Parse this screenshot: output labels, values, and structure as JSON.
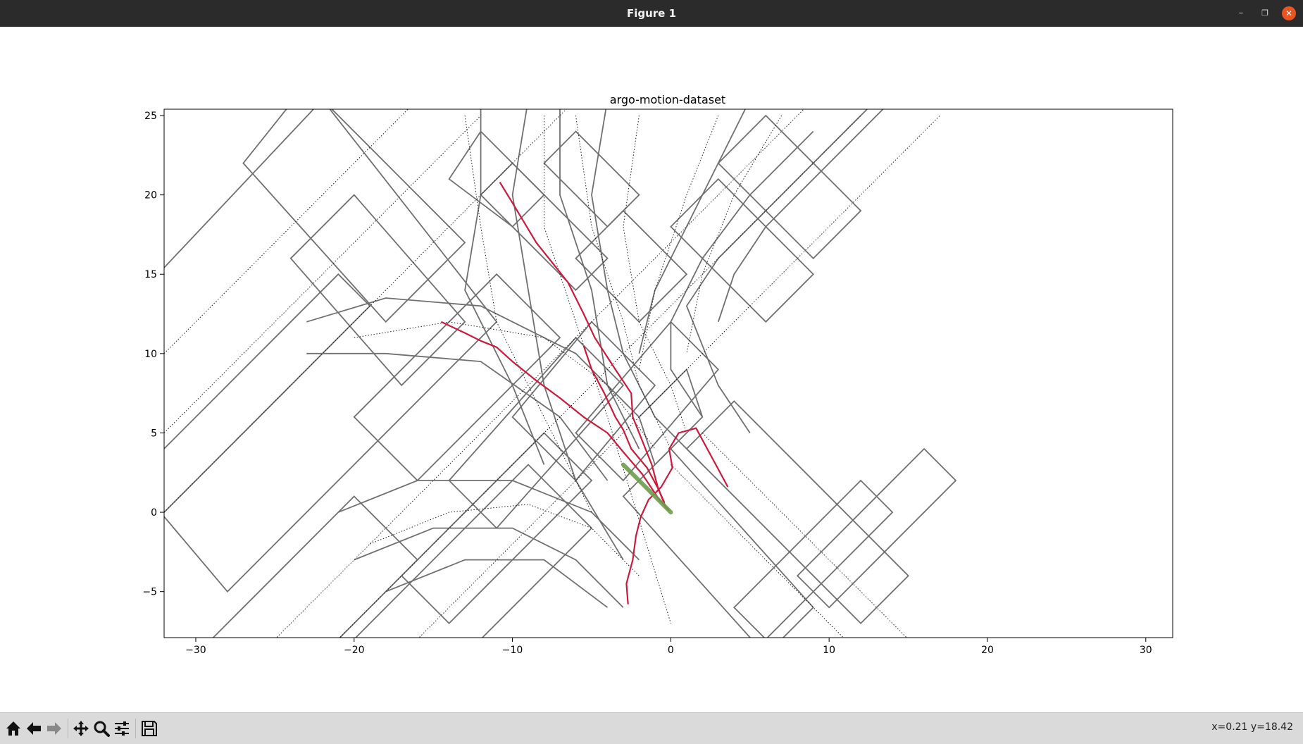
{
  "window": {
    "title": "Figure 1",
    "minimize_glyph": "–",
    "maximize_glyph": "❐",
    "close_glyph": "✕"
  },
  "toolbar": {
    "buttons": [
      {
        "name": "home-icon",
        "label": "Home"
      },
      {
        "name": "back-icon",
        "label": "Back"
      },
      {
        "name": "forward-icon",
        "label": "Forward"
      },
      {
        "name": "pan-icon",
        "label": "Pan"
      },
      {
        "name": "zoom-icon",
        "label": "Zoom"
      },
      {
        "name": "configure-subplots-icon",
        "label": "Configure subplots"
      },
      {
        "name": "save-icon",
        "label": "Save"
      }
    ],
    "coordinates": "x=0.21 y=18.42"
  },
  "chart_data": {
    "type": "line",
    "title": "argo-motion-dataset",
    "xlabel": "",
    "ylabel": "",
    "xlim": [
      -32,
      31.7
    ],
    "ylim": [
      -7.9,
      25.4
    ],
    "xticks": [
      -30,
      -20,
      -10,
      0,
      10,
      20,
      30
    ],
    "yticks": [
      -5,
      0,
      5,
      10,
      15,
      20,
      25
    ],
    "grid": false,
    "colors": {
      "lanes": "#707070",
      "centerlines": "#202020",
      "trajectories": "#cc1a3c",
      "ego": "#6b9c4d"
    },
    "lane_polygons": [
      [
        [
          -28,
          -5
        ],
        [
          -14,
          9
        ],
        [
          -11,
          12
        ],
        [
          -22,
          26
        ],
        [
          -39,
          8
        ]
      ],
      [
        [
          -27,
          22
        ],
        [
          -18,
          12
        ],
        [
          -13,
          17
        ],
        [
          -23,
          27
        ]
      ],
      [
        [
          -24,
          16
        ],
        [
          -17,
          8
        ],
        [
          -13,
          12
        ],
        [
          -20,
          20
        ]
      ],
      [
        [
          -34,
          2
        ],
        [
          -21,
          15
        ],
        [
          -19,
          13
        ],
        [
          -32,
          0
        ]
      ],
      [
        [
          -20,
          6
        ],
        [
          -11,
          15
        ],
        [
          -7,
          11
        ],
        [
          -16,
          2
        ]
      ],
      [
        [
          -29,
          -8
        ],
        [
          -20,
          1
        ],
        [
          -16,
          -3
        ],
        [
          -25,
          -12
        ]
      ],
      [
        [
          -14,
          2
        ],
        [
          -6,
          11
        ],
        [
          -3,
          8
        ],
        [
          -11,
          -1
        ]
      ],
      [
        [
          -10,
          6
        ],
        [
          -5,
          12
        ],
        [
          -1,
          8
        ],
        [
          -6,
          2
        ]
      ],
      [
        [
          -6,
          5
        ],
        [
          0,
          12
        ],
        [
          3,
          9
        ],
        [
          -3,
          2
        ]
      ],
      [
        [
          -3,
          1
        ],
        [
          0,
          4
        ],
        [
          9,
          -6
        ],
        [
          6,
          -9
        ]
      ],
      [
        [
          1,
          4
        ],
        [
          4,
          7
        ],
        [
          15,
          -4
        ],
        [
          12,
          -7
        ]
      ],
      [
        [
          -2,
          6
        ],
        [
          1,
          9
        ],
        [
          2,
          6
        ],
        [
          -1,
          3
        ]
      ],
      [
        [
          4,
          -6
        ],
        [
          6,
          -8
        ],
        [
          14,
          0
        ],
        [
          12,
          2
        ]
      ],
      [
        [
          8,
          -4
        ],
        [
          10,
          -6
        ],
        [
          18,
          2
        ],
        [
          16,
          4
        ]
      ],
      [
        [
          -12,
          20
        ],
        [
          -10,
          22
        ],
        [
          -4,
          16
        ],
        [
          -6,
          14
        ]
      ],
      [
        [
          -8,
          22
        ],
        [
          -6,
          24
        ],
        [
          -2,
          20
        ],
        [
          -4,
          18
        ]
      ],
      [
        [
          -6,
          16
        ],
        [
          -3,
          19
        ],
        [
          1,
          15
        ],
        [
          -2,
          12
        ]
      ],
      [
        [
          -14,
          21
        ],
        [
          -12,
          24
        ],
        [
          -8,
          20
        ],
        [
          -10,
          18
        ]
      ],
      [
        [
          0,
          18
        ],
        [
          3,
          21
        ],
        [
          9,
          15
        ],
        [
          6,
          12
        ]
      ],
      [
        [
          3,
          22
        ],
        [
          6,
          25
        ],
        [
          12,
          19
        ],
        [
          9,
          16
        ]
      ],
      [
        [
          -20,
          -8
        ],
        [
          -9,
          3
        ],
        [
          -5,
          -1
        ],
        [
          -16,
          -12
        ]
      ],
      [
        [
          -17,
          -4
        ],
        [
          -8,
          5
        ],
        [
          -5,
          2
        ],
        [
          -14,
          -7
        ]
      ]
    ],
    "lane_boundaries": [
      [
        [
          -23,
          12
        ],
        [
          -18,
          13.5
        ],
        [
          -12,
          13
        ],
        [
          -6,
          10
        ],
        [
          -2,
          6
        ]
      ],
      [
        [
          -23,
          10
        ],
        [
          -18,
          10
        ],
        [
          -12,
          9.5
        ],
        [
          -7,
          6
        ],
        [
          -4,
          2
        ]
      ],
      [
        [
          -21,
          0
        ],
        [
          -16,
          2
        ],
        [
          -10,
          2
        ],
        [
          -5,
          0
        ],
        [
          -2,
          -3
        ]
      ],
      [
        [
          -20,
          -3
        ],
        [
          -15,
          -1
        ],
        [
          -10,
          -1
        ],
        [
          -6,
          -3
        ],
        [
          -3,
          -6
        ]
      ],
      [
        [
          -18,
          -5
        ],
        [
          -13,
          -3
        ],
        [
          -8,
          -3
        ],
        [
          -4,
          -6
        ]
      ],
      [
        [
          -12,
          26
        ],
        [
          -12,
          20
        ],
        [
          -13,
          14
        ],
        [
          -10,
          8
        ],
        [
          -8,
          3
        ]
      ],
      [
        [
          -9,
          26
        ],
        [
          -10,
          20
        ],
        [
          -9,
          14
        ],
        [
          -8,
          8
        ],
        [
          -6,
          2
        ],
        [
          -3,
          -3
        ]
      ],
      [
        [
          -7,
          26
        ],
        [
          -7,
          20
        ],
        [
          -5,
          14
        ],
        [
          -4,
          8
        ],
        [
          -2,
          4
        ]
      ],
      [
        [
          -4,
          26
        ],
        [
          -5,
          20
        ],
        [
          -4,
          14
        ],
        [
          -3,
          10
        ],
        [
          -1,
          6
        ],
        [
          2,
          3
        ]
      ],
      [
        [
          5,
          26
        ],
        [
          2,
          20
        ],
        [
          -1,
          14
        ],
        [
          -2,
          10
        ]
      ],
      [
        [
          9,
          24
        ],
        [
          5,
          20
        ],
        [
          2,
          16
        ],
        [
          0,
          12
        ],
        [
          0,
          9
        ],
        [
          2,
          6
        ]
      ],
      [
        [
          13,
          26
        ],
        [
          7,
          20
        ],
        [
          3,
          16
        ],
        [
          1,
          13
        ],
        [
          3,
          8
        ],
        [
          5,
          5
        ]
      ],
      [
        [
          14,
          26
        ],
        [
          10,
          22
        ],
        [
          6,
          18
        ],
        [
          4,
          15
        ],
        [
          3,
          12
        ]
      ]
    ],
    "center_lines": [
      [
        [
          -32,
          0
        ],
        [
          -20,
          12
        ],
        [
          -10,
          22
        ],
        [
          -3,
          29
        ]
      ],
      [
        [
          -32,
          5
        ],
        [
          -20,
          17
        ],
        [
          -12,
          25
        ]
      ],
      [
        [
          -32,
          10
        ],
        [
          -22,
          20
        ],
        [
          -16,
          26
        ]
      ],
      [
        [
          -25,
          -8
        ],
        [
          -14,
          3
        ],
        [
          -6,
          11
        ],
        [
          2,
          19
        ],
        [
          9,
          26
        ]
      ],
      [
        [
          -21,
          -8
        ],
        [
          -10,
          3
        ],
        [
          -2,
          11
        ],
        [
          6,
          19
        ],
        [
          12,
          25
        ]
      ],
      [
        [
          -16,
          -8
        ],
        [
          -5,
          3
        ],
        [
          3,
          11
        ],
        [
          10,
          18
        ],
        [
          17,
          25
        ]
      ],
      [
        [
          -20,
          11
        ],
        [
          -14,
          12
        ],
        [
          -8,
          11
        ],
        [
          -4,
          8
        ],
        [
          -1,
          4
        ]
      ],
      [
        [
          -19,
          -2
        ],
        [
          -14,
          0
        ],
        [
          -9,
          0.5
        ],
        [
          -5,
          -1
        ],
        [
          -2,
          -4
        ]
      ],
      [
        [
          -13,
          25
        ],
        [
          -12,
          18
        ],
        [
          -11,
          12
        ],
        [
          -8,
          6
        ],
        [
          -5,
          0
        ]
      ],
      [
        [
          -8,
          25
        ],
        [
          -8,
          18
        ],
        [
          -6,
          12
        ],
        [
          -4,
          6
        ],
        [
          0,
          -7
        ]
      ],
      [
        [
          -6,
          25
        ],
        [
          -5,
          18
        ],
        [
          -3,
          12
        ],
        [
          -2,
          8
        ],
        [
          0,
          4
        ]
      ],
      [
        [
          -2,
          25
        ],
        [
          -3,
          18
        ],
        [
          -2,
          12
        ],
        [
          0,
          8
        ],
        [
          1,
          5
        ]
      ],
      [
        [
          3,
          25
        ],
        [
          1,
          20
        ],
        [
          -1,
          14
        ],
        [
          -2,
          9
        ]
      ],
      [
        [
          7,
          25
        ],
        [
          4,
          20
        ],
        [
          2,
          15
        ],
        [
          1,
          10
        ]
      ],
      [
        [
          2,
          5
        ],
        [
          6,
          1
        ],
        [
          12,
          -5
        ],
        [
          15,
          -8
        ]
      ],
      [
        [
          0,
          3
        ],
        [
          4,
          -1
        ],
        [
          8,
          -5
        ],
        [
          11,
          -8
        ]
      ]
    ],
    "trajectories": [
      [
        [
          -10.8,
          20.8
        ],
        [
          -10,
          19.5
        ],
        [
          -8.5,
          17
        ],
        [
          -6.5,
          14.5
        ],
        [
          -5.5,
          12.5
        ],
        [
          -4.8,
          11
        ],
        [
          -3.5,
          9
        ],
        [
          -2.5,
          7.5
        ],
        [
          -2.4,
          6
        ],
        [
          -1.8,
          4.5
        ],
        [
          -1.2,
          3
        ],
        [
          -0.8,
          1.5
        ],
        [
          -0.3,
          0.3
        ]
      ],
      [
        [
          -14.5,
          12
        ],
        [
          -13,
          11.3
        ],
        [
          -12,
          10.8
        ],
        [
          -11,
          10.4
        ],
        [
          -10,
          9.5
        ],
        [
          -8.5,
          8.3
        ],
        [
          -7,
          7.2
        ],
        [
          -5.5,
          6
        ],
        [
          -4,
          5
        ],
        [
          -3,
          3.8
        ],
        [
          -1.8,
          2.4
        ],
        [
          -0.8,
          0.9
        ],
        [
          -0.1,
          0.1
        ]
      ],
      [
        [
          -5.5,
          10.5
        ],
        [
          -5,
          9
        ],
        [
          -4.2,
          7.5
        ],
        [
          -3.5,
          6
        ],
        [
          -3,
          5.2
        ],
        [
          -2.5,
          4
        ],
        [
          -1.5,
          2.8
        ],
        [
          -0.8,
          1.5
        ],
        [
          -0.4,
          0.6
        ]
      ],
      [
        [
          -2.7,
          -5.8
        ],
        [
          -2.8,
          -4.5
        ],
        [
          -2.4,
          -3
        ],
        [
          -2.2,
          -1.5
        ],
        [
          -1.9,
          -0.3
        ],
        [
          -1.4,
          0.8
        ],
        [
          -0.6,
          1.6
        ],
        [
          0.1,
          2.8
        ],
        [
          -0.1,
          4
        ],
        [
          0.5,
          5
        ],
        [
          1.6,
          5.3
        ],
        [
          3.6,
          1.6
        ]
      ]
    ],
    "ego_path": [
      [
        -3,
        3
      ],
      [
        -2,
        2
      ],
      [
        -1,
        1
      ],
      [
        0,
        0
      ]
    ]
  }
}
